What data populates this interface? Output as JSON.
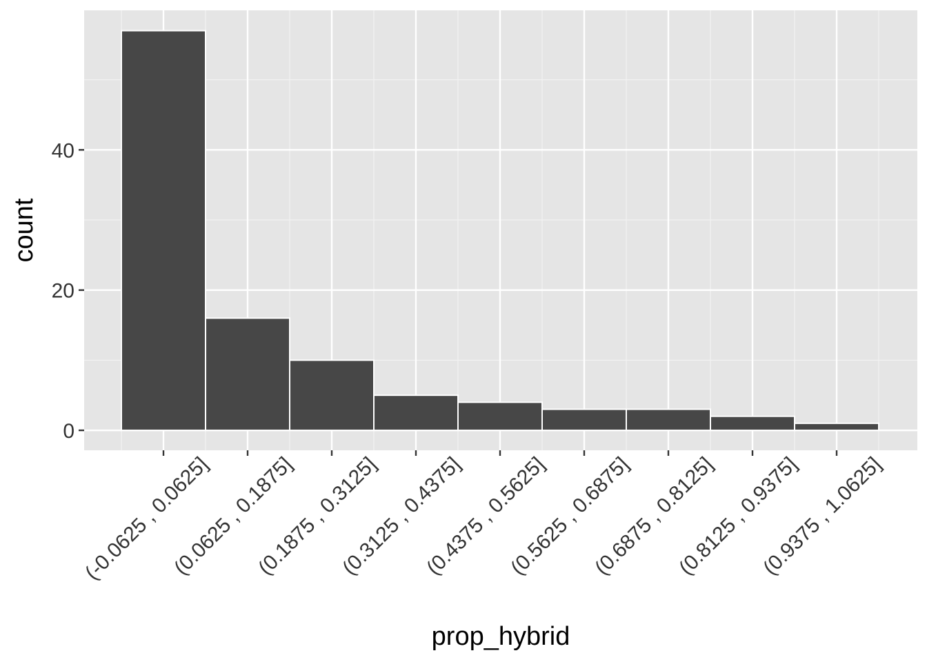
{
  "chart_data": {
    "type": "bar",
    "x_label": "prop_hybrid",
    "y_label": "count",
    "categories": [
      "(-0.0625 , 0.0625]",
      "(0.0625 , 0.1875]",
      "(0.1875 , 0.3125]",
      "(0.3125 , 0.4375]",
      "(0.4375 , 0.5625]",
      "(0.5625 , 0.6875]",
      "(0.6875 , 0.8125]",
      "(0.8125 , 0.9375]",
      "(0.9375 , 1.0625]"
    ],
    "values": [
      57,
      16,
      10,
      5,
      4,
      3,
      3,
      2,
      1
    ],
    "color": "#474747",
    "ylim": [
      -2.85,
      59.9
    ],
    "yticks": [
      0,
      20,
      40
    ],
    "grid": true
  }
}
